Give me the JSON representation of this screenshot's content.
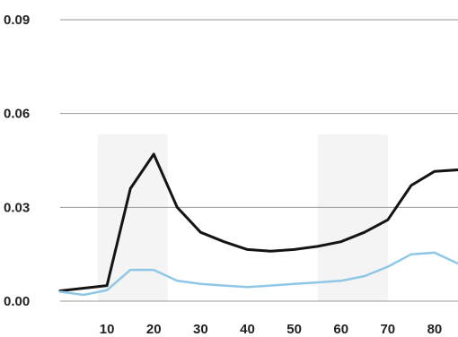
{
  "chart_data": {
    "type": "line",
    "title": "",
    "xlabel": "",
    "ylabel": "",
    "xlim": [
      0,
      90
    ],
    "ylim": [
      0,
      0.09
    ],
    "x_ticks": [
      10,
      20,
      30,
      40,
      50,
      60,
      70,
      80
    ],
    "x_tick_labels": [
      "10",
      "20",
      "30",
      "40",
      "50",
      "60",
      "70",
      "80"
    ],
    "y_ticks": [
      0,
      0.03,
      0.06,
      0.09
    ],
    "y_tick_labels": [
      "0.00",
      "0.03",
      "0.06",
      "0.09"
    ],
    "grid": "horizontal",
    "highlight_bands": [
      [
        8,
        23
      ],
      [
        55,
        70
      ]
    ],
    "colors": {
      "grid": "#9a9a9a",
      "band": "#f4f4f4",
      "series": [
        "#141414",
        "#8ec8e6"
      ]
    },
    "series": [
      {
        "x": [
          0,
          10,
          15,
          20,
          25,
          30,
          35,
          40,
          45,
          50,
          55,
          60,
          65,
          70,
          75,
          80,
          85
        ],
        "values": [
          0.0033,
          0.005,
          0.036,
          0.047,
          0.03,
          0.022,
          0.019,
          0.0165,
          0.016,
          0.0165,
          0.0175,
          0.019,
          0.022,
          0.026,
          0.037,
          0.0415,
          0.042
        ]
      },
      {
        "x": [
          0,
          5,
          10,
          15,
          20,
          25,
          30,
          35,
          40,
          45,
          50,
          55,
          60,
          65,
          70,
          75,
          80,
          85
        ],
        "values": [
          0.003,
          0.002,
          0.0035,
          0.01,
          0.01,
          0.0065,
          0.0055,
          0.005,
          0.0045,
          0.005,
          0.0055,
          0.006,
          0.0065,
          0.008,
          0.011,
          0.015,
          0.0155,
          0.012
        ]
      }
    ]
  }
}
